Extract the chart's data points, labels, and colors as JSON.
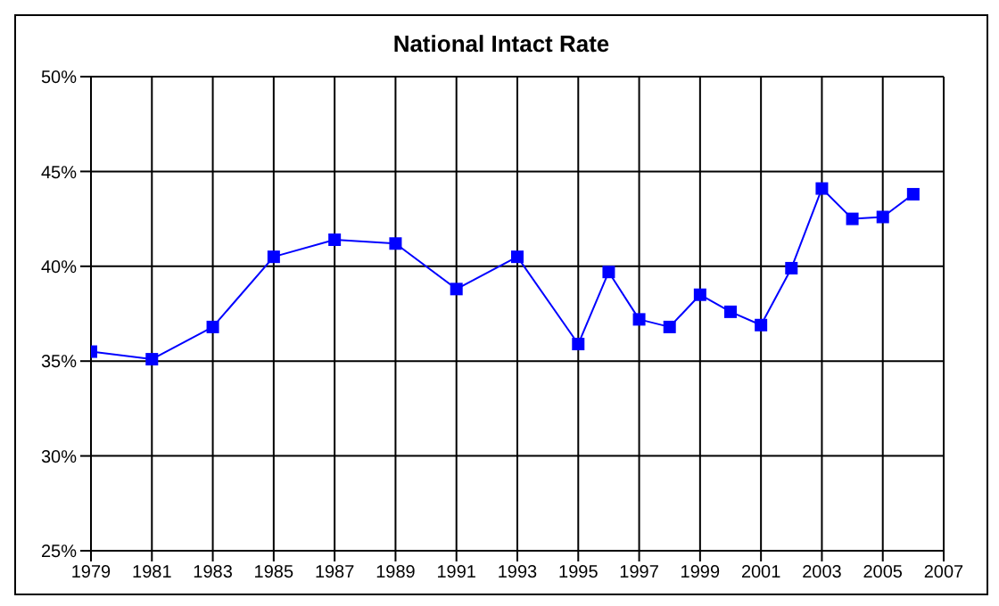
{
  "chart_data": {
    "type": "line",
    "title": "National Intact Rate",
    "x": [
      1979,
      1981,
      1983,
      1985,
      1987,
      1989,
      1991,
      1993,
      1995,
      1996,
      1997,
      1998,
      1999,
      2000,
      2001,
      2002,
      2003,
      2004,
      2005,
      2006
    ],
    "series": [
      {
        "color": "#0000ff",
        "values": [
          35.5,
          35.1,
          36.8,
          40.5,
          41.4,
          41.2,
          38.8,
          40.5,
          35.9,
          39.7,
          37.2,
          36.8,
          38.5,
          37.6,
          36.9,
          39.9,
          44.1,
          42.5,
          42.6,
          43.8
        ]
      }
    ],
    "xlim": [
      1979,
      2007
    ],
    "xticks": [
      1979,
      1981,
      1983,
      1985,
      1987,
      1989,
      1991,
      1993,
      1995,
      1997,
      1999,
      2001,
      2003,
      2005,
      2007
    ],
    "ylim": [
      25,
      50
    ],
    "yticks": [
      {
        "value": 25,
        "label": "25%"
      },
      {
        "value": 30,
        "label": "30%"
      },
      {
        "value": 35,
        "label": "35%"
      },
      {
        "value": 40,
        "label": "40%"
      },
      {
        "value": 45,
        "label": "45%"
      },
      {
        "value": 50,
        "label": "50%"
      }
    ],
    "grid": true,
    "marker": "square",
    "line_style": "solid",
    "legend": false
  }
}
